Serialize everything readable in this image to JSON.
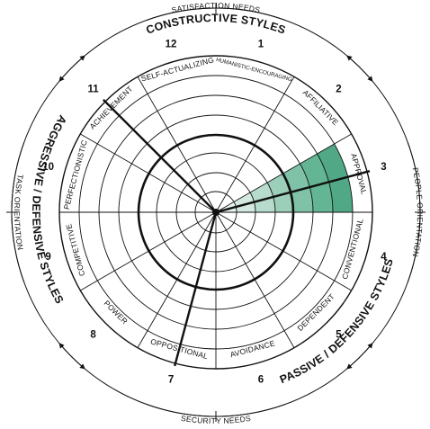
{
  "segments": [
    {
      "number": "1",
      "label": "HUMANISTIC-ENCOURAGING",
      "small": true
    },
    {
      "number": "2",
      "label": "AFFILIATIVE"
    },
    {
      "number": "3",
      "label": "APPROVAL"
    },
    {
      "number": "4",
      "label": "CONVENTIONAL"
    },
    {
      "number": "5",
      "label": "DEPENDENT"
    },
    {
      "number": "6",
      "label": "AVOIDANCE"
    },
    {
      "number": "7",
      "label": "OPPOSITIONAL"
    },
    {
      "number": "8",
      "label": "POWER"
    },
    {
      "number": "9",
      "label": "COMPETITIVE"
    },
    {
      "number": "10",
      "label": "PERFECTIONISTIC"
    },
    {
      "number": "11",
      "label": "ACHIEVEMENT"
    },
    {
      "number": "12",
      "label": "SELF-ACTUALIZING"
    }
  ],
  "clusters": {
    "constructive": "CONSTRUCTIVE STYLES",
    "passive": "PASSIVE / DEFENSIVE STYLES",
    "aggressive": "AGGRESSIVE / DEFENSIVE STYLES"
  },
  "axes": {
    "top": "SATISFACTION NEEDS",
    "bottom": "SECURITY NEEDS",
    "left": "TASK ORIENTATION",
    "right": "PEOPLE ORIENTATION"
  },
  "highlight": {
    "segment": "3",
    "level_rings": 6,
    "total_rings": 6,
    "colors": [
      "#d3e9e0",
      "#b7dccd",
      "#9bcfba",
      "#7fc2a7",
      "#63b594",
      "#50a886"
    ]
  },
  "colors": {
    "line": "#111111",
    "background": "#ffffff"
  }
}
